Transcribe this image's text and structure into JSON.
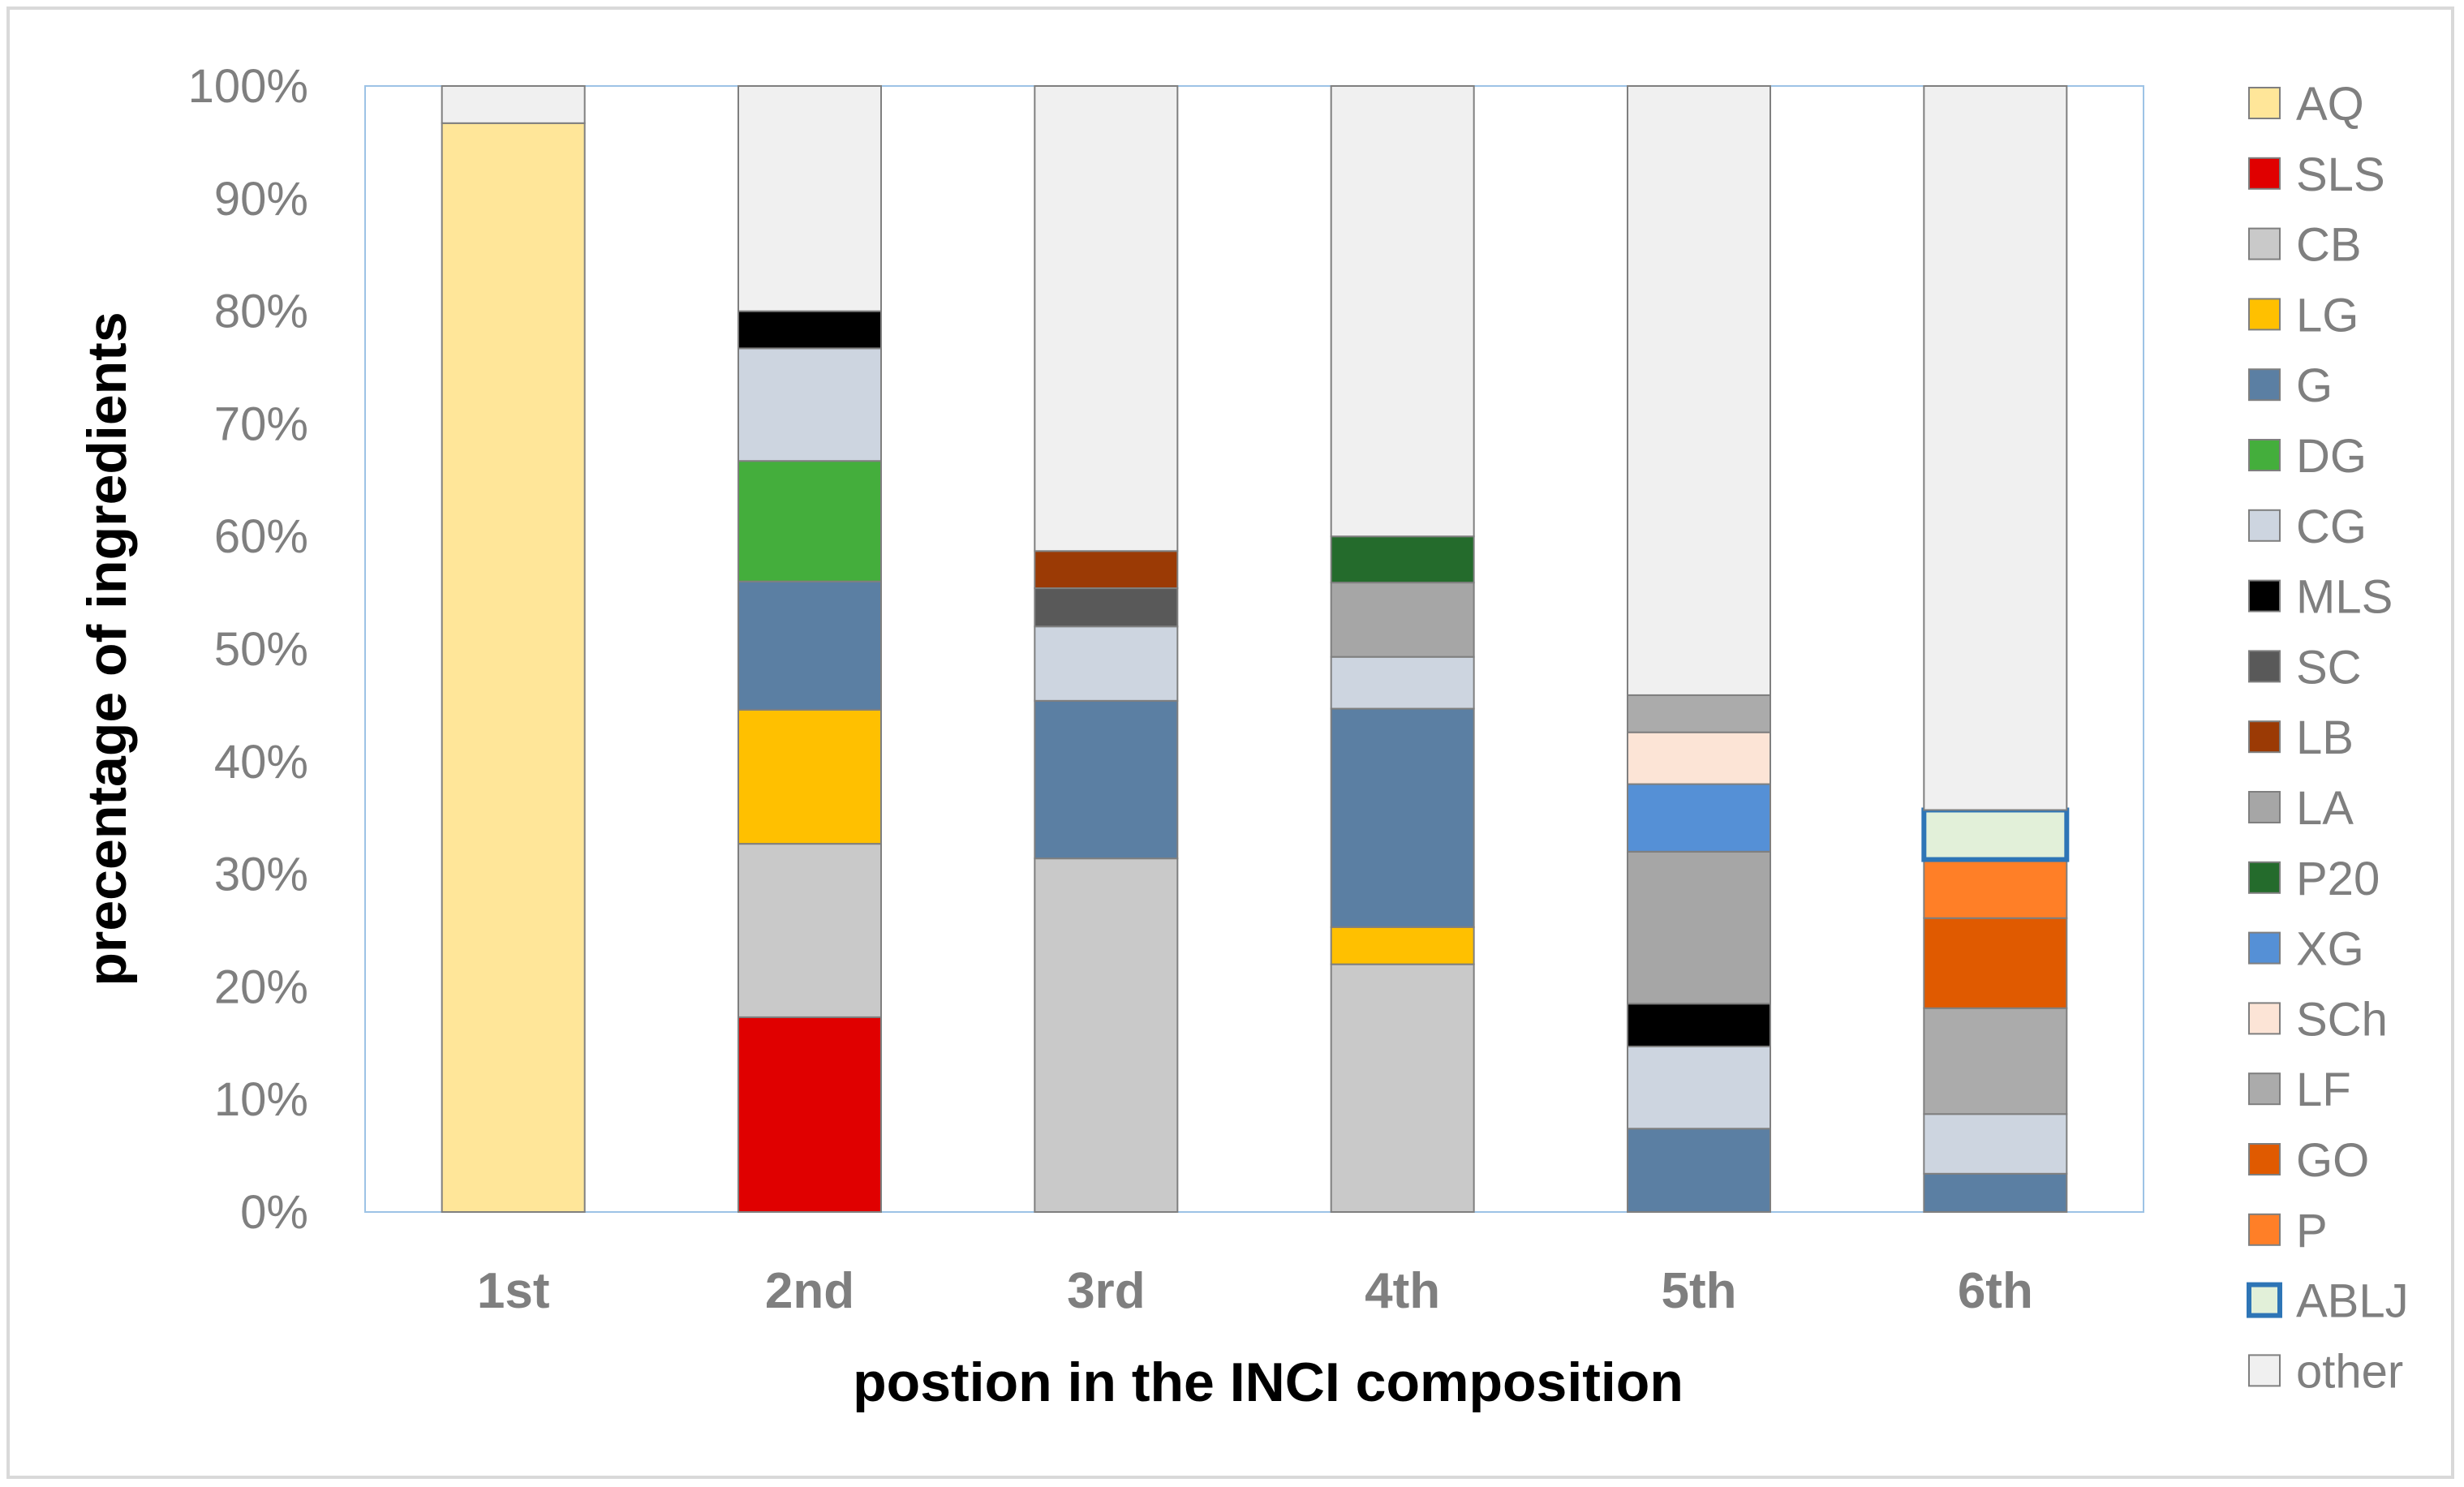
{
  "chart_data": {
    "type": "bar",
    "stacked": true,
    "percent": true,
    "title": "",
    "xlabel": "postion in the INCI composition",
    "ylabel": "precentage of ingredients",
    "ylim": [
      0,
      100
    ],
    "yticks": [
      "0%",
      "10%",
      "20%",
      "30%",
      "40%",
      "50%",
      "60%",
      "70%",
      "80%",
      "90%",
      "100%"
    ],
    "categories": [
      "1st",
      "2nd",
      "3rd",
      "4th",
      "5th",
      "6th"
    ],
    "legend_position": "right",
    "grid": false,
    "series": [
      {
        "name": "AQ",
        "color": "#FFE699",
        "values": [
          96.7,
          0,
          0,
          0,
          0,
          0
        ]
      },
      {
        "name": "SLS",
        "color": "#E00000",
        "values": [
          0,
          17.3,
          0,
          0,
          0,
          0
        ]
      },
      {
        "name": "CB",
        "color": "#C9C9C9",
        "values": [
          0,
          15.4,
          31.4,
          22.0,
          0,
          0
        ]
      },
      {
        "name": "LG",
        "color": "#FFC000",
        "values": [
          0,
          11.9,
          0,
          3.3,
          0,
          0
        ]
      },
      {
        "name": "G",
        "color": "#5B7FA3",
        "values": [
          0,
          11.4,
          14.0,
          19.4,
          7.4,
          3.4
        ]
      },
      {
        "name": "DG",
        "color": "#44AE3C",
        "values": [
          0,
          10.7,
          0,
          0,
          0,
          0
        ]
      },
      {
        "name": "CG",
        "color": "#CDD5E0",
        "values": [
          0,
          10.0,
          6.6,
          4.6,
          7.3,
          5.3
        ]
      },
      {
        "name": "MLS",
        "color": "#000000",
        "values": [
          0,
          3.3,
          0,
          0,
          3.8,
          0
        ]
      },
      {
        "name": "SC",
        "color": "#595959",
        "values": [
          0,
          0,
          3.4,
          0,
          0,
          0
        ]
      },
      {
        "name": "LB",
        "color": "#9B3A05",
        "values": [
          0,
          0,
          3.3,
          0,
          0,
          0
        ]
      },
      {
        "name": "LA",
        "color": "#A6A6A6",
        "values": [
          0,
          0,
          0,
          6.6,
          13.5,
          0
        ]
      },
      {
        "name": "P20",
        "color": "#246B2C",
        "values": [
          0,
          0,
          0,
          4.1,
          0,
          0
        ]
      },
      {
        "name": "XG",
        "color": "#5590D6",
        "values": [
          0,
          0,
          0,
          0,
          6.0,
          0
        ]
      },
      {
        "name": "SCh",
        "color": "#FCE4D6",
        "values": [
          0,
          0,
          0,
          0,
          4.6,
          0
        ]
      },
      {
        "name": "LF",
        "color": "#ABABAB",
        "values": [
          0,
          0,
          0,
          0,
          3.3,
          9.4
        ]
      },
      {
        "name": "GO",
        "color": "#E05A00",
        "values": [
          0,
          0,
          0,
          0,
          0,
          8.0
        ]
      },
      {
        "name": "P",
        "color": "#FF7F27",
        "values": [
          0,
          0,
          0,
          0,
          0,
          5.2
        ]
      },
      {
        "name": "ABLJ",
        "color": "#E2F0D9",
        "border": "#2E75B6",
        "values": [
          0,
          0,
          0,
          0,
          0,
          4.4
        ]
      },
      {
        "name": "other",
        "color": "#F0F0F0",
        "values": [
          3.3,
          20.0,
          41.3,
          40.0,
          54.1,
          64.3
        ]
      }
    ]
  }
}
